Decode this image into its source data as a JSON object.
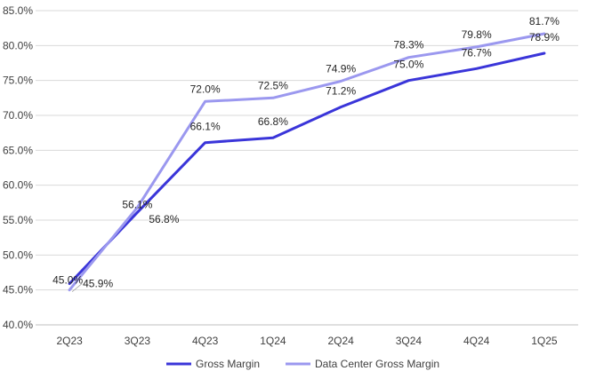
{
  "chart_data": {
    "type": "line",
    "title": "",
    "xlabel": "",
    "ylabel": "",
    "categories": [
      "2Q23",
      "3Q23",
      "4Q23",
      "1Q24",
      "2Q24",
      "3Q24",
      "4Q24",
      "1Q25"
    ],
    "ylim": [
      40,
      85
    ],
    "ytick_labels": [
      "40.0%",
      "45.0%",
      "50.0%",
      "55.0%",
      "60.0%",
      "65.0%",
      "70.0%",
      "75.0%",
      "80.0%",
      "85.0%"
    ],
    "grid": true,
    "legend_position": "bottom",
    "series": [
      {
        "name": "Gross Margin",
        "color": "#3a35d9",
        "values": [
          45.9,
          56.1,
          66.1,
          66.8,
          71.2,
          75.0,
          76.7,
          78.9
        ],
        "labels": [
          "45.9%",
          "56.1%",
          "66.1%",
          "66.8%",
          "71.2%",
          "75.0%",
          "76.7%",
          "78.9%"
        ]
      },
      {
        "name": "Data Center Gross Margin",
        "color": "#9b98ef",
        "values": [
          45.0,
          56.8,
          72.0,
          72.5,
          74.9,
          78.3,
          79.8,
          81.7
        ],
        "labels": [
          "45.0%",
          "56.8%",
          "72.0%",
          "72.5%",
          "74.9%",
          "78.3%",
          "79.8%",
          "81.7%"
        ]
      }
    ]
  }
}
